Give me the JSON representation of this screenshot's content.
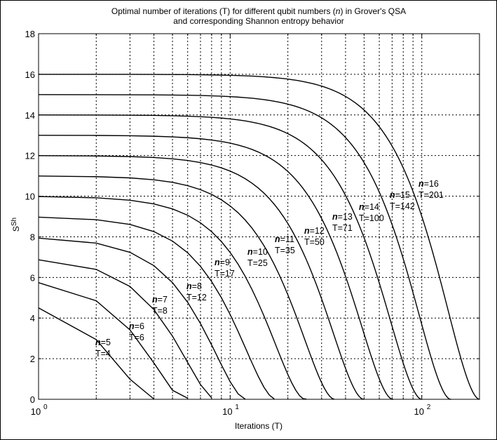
{
  "chart_data": {
    "type": "line",
    "title_lines": [
      [
        "Optimal number of iterations (T) for different qubit numbers (",
        "n",
        ") in Grover's QSA"
      ],
      [
        "and corresponding Shannon entropy behavior",
        "",
        ""
      ]
    ],
    "xlabel": "Iterations (T)",
    "ylabel": {
      "base": "S",
      "sub": "Sh"
    },
    "xscale": "log",
    "xlim": [
      1,
      200
    ],
    "ylim": [
      0,
      18
    ],
    "grid": true,
    "yticks": [
      "0",
      "2",
      "4",
      "6",
      "8",
      "10",
      "12",
      "14",
      "16",
      "18"
    ],
    "xticks": [
      {
        "base": "10",
        "exp": "0",
        "value": 1
      },
      {
        "base": "10",
        "exp": "1",
        "value": 10
      },
      {
        "base": "10",
        "exp": "2",
        "value": 100
      }
    ],
    "series": [
      {
        "n": 5,
        "T": 4,
        "n_label": "n",
        "n_value": "=5",
        "T_text": "T=4"
      },
      {
        "n": 6,
        "T": 6,
        "n_label": "n",
        "n_value": "=6",
        "T_text": "T=6"
      },
      {
        "n": 7,
        "T": 8,
        "n_label": "n",
        "n_value": "=7",
        "T_text": "T=8"
      },
      {
        "n": 8,
        "T": 12,
        "n_label": "n",
        "n_value": "=8",
        "T_text": "T=12"
      },
      {
        "n": 9,
        "T": 17,
        "n_label": "n",
        "n_value": "=9",
        "T_text": "T=17"
      },
      {
        "n": 10,
        "T": 25,
        "n_label": "n",
        "n_value": "=10",
        "T_text": "T=25"
      },
      {
        "n": 11,
        "T": 35,
        "n_label": "n",
        "n_value": "=11",
        "T_text": "T=35"
      },
      {
        "n": 12,
        "T": 50,
        "n_label": "n",
        "n_value": "=12",
        "T_text": "T=50"
      },
      {
        "n": 13,
        "T": 71,
        "n_label": "n",
        "n_value": "=13",
        "T_text": "T=71"
      },
      {
        "n": 14,
        "T": 100,
        "n_label": "n",
        "n_value": "=14",
        "T_text": "T=100"
      },
      {
        "n": 15,
        "T": 142,
        "n_label": "n",
        "n_value": "=15",
        "T_text": "T=142"
      },
      {
        "n": 16,
        "T": 201,
        "n_label": "n",
        "n_value": "=16",
        "T_text": "T=201"
      }
    ],
    "colors": {
      "line": "#000000",
      "grid": "#000000",
      "background": "#ffffff"
    }
  }
}
